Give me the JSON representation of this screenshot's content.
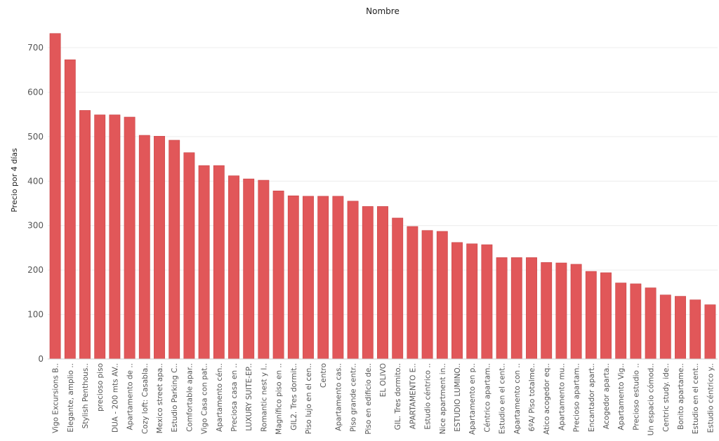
{
  "chart_data": {
    "type": "bar",
    "title": "Nombre",
    "xlabel": "",
    "ylabel": "Precio por 4 días",
    "ylim": [
      0,
      760
    ],
    "yticks": [
      0,
      100,
      200,
      300,
      400,
      500,
      600,
      700
    ],
    "grid": true,
    "bar_color": "#e15759",
    "categories": [
      "Vigo Excursions B..",
      "Elegante, amplio ..",
      "Stylish Penthous..",
      "precioso piso",
      "DUA - 200 mts AV..",
      "Apartamento de ..",
      "Cozy loft: Casabla..",
      "Mexico street apa..",
      "Estudio Parking C..",
      "Comfortable apar..",
      "Vigo Casa con pat..",
      "Apartamento cén..",
      "Preciosa casa en ..",
      "LUXURY SUITE-EP..",
      "Romantic nest y l..",
      "Magnífico piso en ..",
      "GIL2. Tres dormit..",
      "Piso lujo en el cen..",
      "Centro",
      "Apartamento cas..",
      "Piso grande centr..",
      "Piso en edificio de..",
      "EL OLIVO",
      "GIL. Tres dormito..",
      "APARTAMENTO E..",
      "Estudio céntrico ..",
      "Nice apartment in..",
      "ESTUDIO LUMINO..",
      "Apartamento en p..",
      "Céntrico apartam..",
      "Estudio en el cent..",
      "Apartamento con ..",
      "6ºA/ Piso totalme..",
      "Atico acogedor eq..",
      "Apartamento mu..",
      "Precioso apartam..",
      "Encantador apart..",
      "Acogedor aparta..",
      "Apartamento Vig..",
      "Precioso estudio ..",
      "Un espacio cómod..",
      "Centric study. ide..",
      "Bonito apartame..",
      "Estudio en el cent..",
      "Estudio céntrico y.."
    ],
    "values": [
      732,
      673,
      559,
      549,
      549,
      544,
      503,
      501,
      492,
      464,
      435,
      435,
      412,
      405,
      402,
      378,
      367,
      366,
      366,
      366,
      355,
      343,
      343,
      317,
      298,
      289,
      287,
      262,
      259,
      257,
      228,
      228,
      228,
      217,
      216,
      213,
      197,
      194,
      171,
      169,
      160,
      144,
      141,
      133,
      122
    ]
  }
}
